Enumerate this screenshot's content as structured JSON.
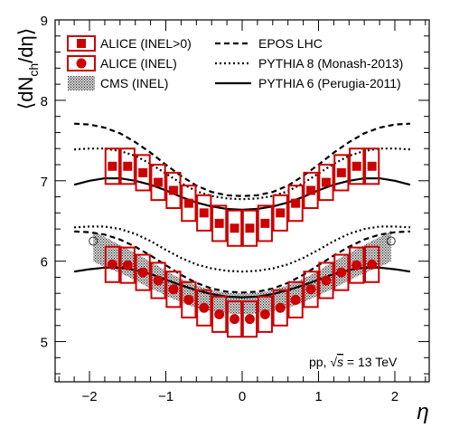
{
  "chart_data": {
    "type": "scatter",
    "xlabel": "η",
    "ylabel_parts": [
      "⟨dN",
      "ch",
      "/dη⟩"
    ],
    "xlim": [
      -2.45,
      2.45
    ],
    "ylim": [
      4.5,
      9.0
    ],
    "x_ticks": [
      "−2",
      "−1",
      "0",
      "1",
      "2"
    ],
    "y_ticks": [
      "5",
      "6",
      "7",
      "8",
      "9"
    ],
    "energy_label": {
      "prefix": "pp, ",
      "root": "s",
      "suffix": " = 13 TeV"
    },
    "legend": [
      {
        "key": "alice_inel_gt0",
        "label": "ALICE (INEL>0)"
      },
      {
        "key": "alice_inel",
        "label": "ALICE (INEL)"
      },
      {
        "key": "cms_inel",
        "label": "CMS (INEL)"
      },
      {
        "key": "epos",
        "label": "EPOS LHC"
      },
      {
        "key": "pythia8",
        "label": "PYTHIA 8 (Monash-2013)"
      },
      {
        "key": "pythia6",
        "label": "PYTHIA 6 (Perugia-2011)"
      }
    ],
    "series": [
      {
        "key": "alice_inel_gt0",
        "name": "ALICE (INEL>0)",
        "marker": "square",
        "color": "#cc0000",
        "x": [
          -1.7,
          -1.5,
          -1.3,
          -1.1,
          -0.9,
          -0.7,
          -0.5,
          -0.3,
          -0.1,
          0.1,
          0.3,
          0.5,
          0.7,
          0.9,
          1.1,
          1.3,
          1.5,
          1.7
        ],
        "y": [
          7.18,
          7.18,
          7.1,
          6.98,
          6.88,
          6.72,
          6.6,
          6.47,
          6.41,
          6.41,
          6.47,
          6.6,
          6.72,
          6.88,
          6.98,
          7.1,
          7.18,
          7.18
        ],
        "sys": 0.22
      },
      {
        "key": "alice_inel",
        "name": "ALICE (INEL)",
        "marker": "circle",
        "color": "#cc0000",
        "x": [
          -1.7,
          -1.5,
          -1.3,
          -1.1,
          -0.9,
          -0.7,
          -0.5,
          -0.3,
          -0.1,
          0.1,
          0.3,
          0.5,
          0.7,
          0.9,
          1.1,
          1.3,
          1.5,
          1.7
        ],
        "y": [
          5.96,
          5.95,
          5.86,
          5.76,
          5.65,
          5.52,
          5.42,
          5.34,
          5.28,
          5.28,
          5.34,
          5.42,
          5.52,
          5.65,
          5.76,
          5.86,
          5.95,
          5.96
        ],
        "sys": 0.22
      },
      {
        "key": "cms_inel",
        "name": "CMS (INEL)",
        "marker": "band",
        "color": "#555555",
        "x": [
          -1.95,
          -1.9,
          -1.8,
          -1.7,
          -1.6,
          -1.5,
          -1.4,
          -1.3,
          -1.2,
          -1.1,
          -1.0,
          -0.9,
          -0.8,
          -0.7,
          -0.6,
          -0.5,
          -0.4,
          -0.3,
          -0.2,
          -0.1,
          0.0,
          0.1,
          0.2,
          0.3,
          0.4,
          0.5,
          0.6,
          0.7,
          0.8,
          0.9,
          1.0,
          1.1,
          1.2,
          1.3,
          1.4,
          1.5,
          1.6,
          1.7,
          1.8,
          1.9,
          1.95
        ],
        "y_low": [
          6.0,
          5.97,
          5.93,
          5.89,
          5.85,
          5.81,
          5.76,
          5.71,
          5.66,
          5.62,
          5.57,
          5.53,
          5.49,
          5.45,
          5.42,
          5.4,
          5.38,
          5.36,
          5.35,
          5.34,
          5.34,
          5.34,
          5.35,
          5.36,
          5.38,
          5.4,
          5.42,
          5.45,
          5.49,
          5.53,
          5.57,
          5.62,
          5.66,
          5.71,
          5.76,
          5.81,
          5.85,
          5.89,
          5.93,
          5.97,
          6.0
        ],
        "y_high": [
          6.38,
          6.35,
          6.3,
          6.25,
          6.2,
          6.15,
          6.1,
          6.05,
          5.99,
          5.94,
          5.88,
          5.83,
          5.78,
          5.74,
          5.7,
          5.67,
          5.64,
          5.62,
          5.61,
          5.6,
          5.6,
          5.6,
          5.61,
          5.62,
          5.64,
          5.67,
          5.7,
          5.74,
          5.78,
          5.83,
          5.88,
          5.94,
          5.99,
          6.05,
          6.1,
          6.15,
          6.2,
          6.25,
          6.3,
          6.35,
          6.38
        ],
        "edge_points": [
          [
            -1.95,
            6.25
          ],
          [
            1.95,
            6.25
          ]
        ]
      },
      {
        "key": "epos_upper",
        "name": "EPOS LHC",
        "style": "dashed",
        "x": [
          -2.2,
          -2.0,
          -1.8,
          -1.6,
          -1.4,
          -1.2,
          -1.0,
          -0.8,
          -0.6,
          -0.4,
          -0.2,
          0.0,
          0.2,
          0.4,
          0.6,
          0.8,
          1.0,
          1.2,
          1.4,
          1.6,
          1.8,
          2.0,
          2.2
        ],
        "y": [
          7.71,
          7.7,
          7.66,
          7.59,
          7.48,
          7.35,
          7.2,
          7.06,
          6.94,
          6.86,
          6.82,
          6.81,
          6.82,
          6.86,
          6.94,
          7.06,
          7.2,
          7.35,
          7.48,
          7.59,
          7.66,
          7.7,
          7.71
        ]
      },
      {
        "key": "pythia8_upper",
        "name": "PYTHIA 8 (Monash-2013)",
        "style": "dotted",
        "x": [
          -2.2,
          -2.0,
          -1.8,
          -1.6,
          -1.4,
          -1.2,
          -1.0,
          -0.8,
          -0.6,
          -0.4,
          -0.2,
          0.0,
          0.2,
          0.4,
          0.6,
          0.8,
          1.0,
          1.2,
          1.4,
          1.6,
          1.8,
          2.0,
          2.2
        ],
        "y": [
          7.39,
          7.4,
          7.4,
          7.37,
          7.31,
          7.21,
          7.09,
          6.97,
          6.87,
          6.81,
          6.78,
          6.77,
          6.78,
          6.81,
          6.87,
          6.97,
          7.09,
          7.21,
          7.31,
          7.37,
          7.4,
          7.4,
          7.39
        ]
      },
      {
        "key": "pythia6_upper",
        "name": "PYTHIA 6 (Perugia-2011)",
        "style": "solid",
        "x": [
          -2.2,
          -2.0,
          -1.8,
          -1.6,
          -1.4,
          -1.2,
          -1.0,
          -0.8,
          -0.6,
          -0.4,
          -0.2,
          0.0,
          0.2,
          0.4,
          0.6,
          0.8,
          1.0,
          1.2,
          1.4,
          1.6,
          1.8,
          2.0,
          2.2
        ],
        "y": [
          6.95,
          7.0,
          7.03,
          7.03,
          7.0,
          6.95,
          6.88,
          6.8,
          6.73,
          6.68,
          6.65,
          6.64,
          6.65,
          6.68,
          6.73,
          6.8,
          6.88,
          6.95,
          7.0,
          7.03,
          7.03,
          7.0,
          6.95
        ]
      },
      {
        "key": "epos_lower",
        "name": "EPOS LHC",
        "style": "dashed",
        "x": [
          -2.2,
          -2.0,
          -1.8,
          -1.6,
          -1.4,
          -1.2,
          -1.0,
          -0.8,
          -0.6,
          -0.4,
          -0.2,
          0.0,
          0.2,
          0.4,
          0.6,
          0.8,
          1.0,
          1.2,
          1.4,
          1.6,
          1.8,
          2.0,
          2.2
        ],
        "y": [
          6.37,
          6.36,
          6.33,
          6.27,
          6.18,
          6.07,
          5.95,
          5.83,
          5.73,
          5.66,
          5.62,
          5.61,
          5.62,
          5.66,
          5.73,
          5.83,
          5.95,
          6.07,
          6.18,
          6.27,
          6.33,
          6.36,
          6.37
        ]
      },
      {
        "key": "pythia8_lower",
        "name": "PYTHIA 8 (Monash-2013)",
        "style": "dotted",
        "x": [
          -2.2,
          -2.0,
          -1.8,
          -1.6,
          -1.4,
          -1.2,
          -1.0,
          -0.8,
          -0.6,
          -0.4,
          -0.2,
          0.0,
          0.2,
          0.4,
          0.6,
          0.8,
          1.0,
          1.2,
          1.4,
          1.6,
          1.8,
          2.0,
          2.2
        ],
        "y": [
          6.42,
          6.43,
          6.43,
          6.4,
          6.34,
          6.25,
          6.14,
          6.04,
          5.96,
          5.91,
          5.88,
          5.87,
          5.88,
          5.91,
          5.96,
          6.04,
          6.14,
          6.25,
          6.34,
          6.4,
          6.43,
          6.43,
          6.42
        ]
      },
      {
        "key": "pythia6_lower",
        "name": "PYTHIA 6 (Perugia-2011)",
        "style": "solid",
        "x": [
          -2.2,
          -2.0,
          -1.8,
          -1.6,
          -1.4,
          -1.2,
          -1.0,
          -0.8,
          -0.6,
          -0.4,
          -0.2,
          0.0,
          0.2,
          0.4,
          0.6,
          0.8,
          1.0,
          1.2,
          1.4,
          1.6,
          1.8,
          2.0,
          2.2
        ],
        "y": [
          5.87,
          5.9,
          5.92,
          5.92,
          5.89,
          5.84,
          5.77,
          5.7,
          5.64,
          5.59,
          5.56,
          5.55,
          5.56,
          5.59,
          5.64,
          5.7,
          5.77,
          5.84,
          5.89,
          5.92,
          5.92,
          5.9,
          5.87
        ]
      }
    ]
  }
}
